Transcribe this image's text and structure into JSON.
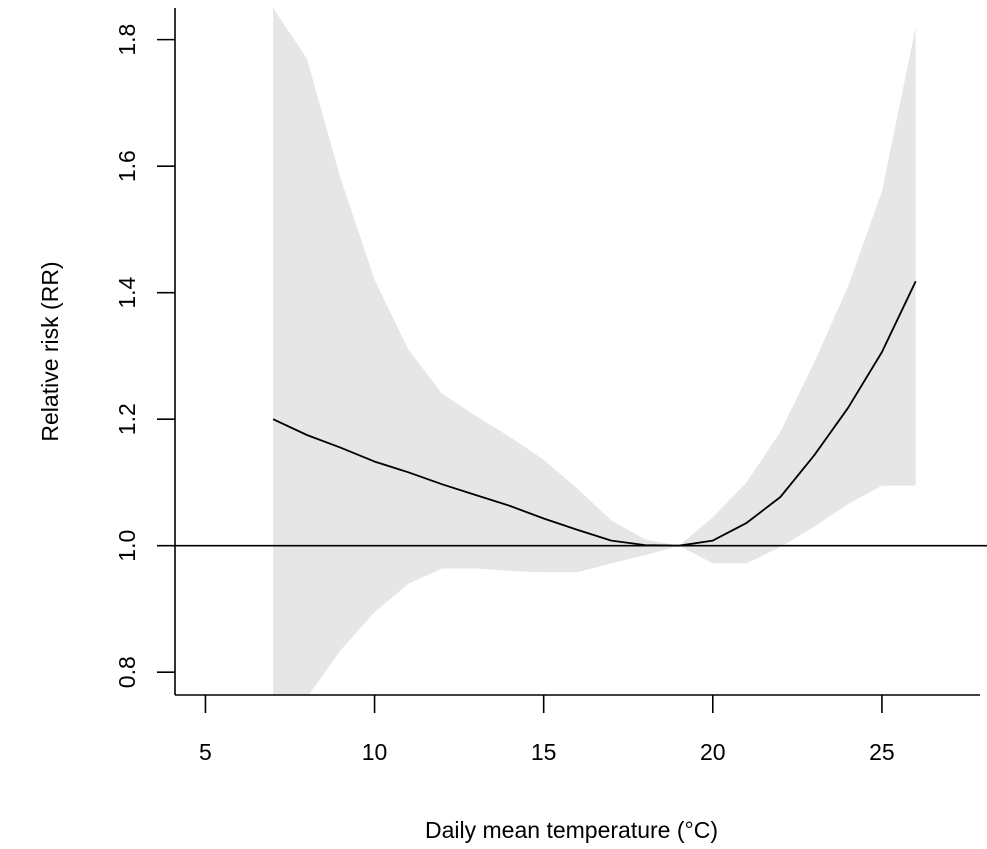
{
  "chart_data": {
    "type": "line",
    "title": "",
    "xlabel": "Daily mean temperature (°C)",
    "ylabel": "Relative risk (RR)",
    "xlim": [
      4.1,
      27.9
    ],
    "ylim": [
      0.764,
      1.85
    ],
    "x_ticks": [
      5,
      10,
      15,
      20,
      25
    ],
    "x_tick_labels": [
      "5",
      "10",
      "15",
      "20",
      "25"
    ],
    "y_ticks": [
      0.8,
      1.0,
      1.2,
      1.4,
      1.6,
      1.8
    ],
    "y_tick_labels": [
      "0.8",
      "1.0",
      "1.2",
      "1.4",
      "1.6",
      "1.8"
    ],
    "reference_line": 1.0,
    "grid": false,
    "legend": "none",
    "colors": {
      "line": "#000000",
      "band": "#e6e6e6",
      "reference": "#000000"
    },
    "series": [
      {
        "role": "estimate",
        "x": [
          7,
          8,
          9,
          10,
          11,
          12,
          13,
          14,
          15,
          16,
          17,
          18,
          19,
          20,
          21,
          22,
          23,
          24,
          25,
          26
        ],
        "y": [
          1.2,
          1.175,
          1.155,
          1.133,
          1.116,
          1.097,
          1.08,
          1.063,
          1.043,
          1.025,
          1.008,
          1.001,
          1.0,
          1.008,
          1.036,
          1.077,
          1.143,
          1.218,
          1.306,
          1.418
        ]
      }
    ],
    "band": {
      "role": "confidence_interval",
      "x": [
        7,
        8,
        9,
        10,
        11,
        12,
        13,
        14,
        15,
        16,
        17,
        18,
        19,
        20,
        21,
        22,
        23,
        24,
        25,
        26
      ],
      "lower": [
        0.76,
        0.76,
        0.835,
        0.895,
        0.94,
        0.964,
        0.964,
        0.96,
        0.958,
        0.958,
        0.972,
        0.985,
        1.0,
        0.972,
        0.972,
        0.998,
        1.03,
        1.066,
        1.095,
        1.095
      ],
      "upper": [
        1.85,
        1.77,
        1.58,
        1.42,
        1.31,
        1.24,
        1.205,
        1.172,
        1.136,
        1.09,
        1.04,
        1.01,
        1.0,
        1.045,
        1.1,
        1.18,
        1.29,
        1.41,
        1.56,
        1.82
      ]
    }
  }
}
